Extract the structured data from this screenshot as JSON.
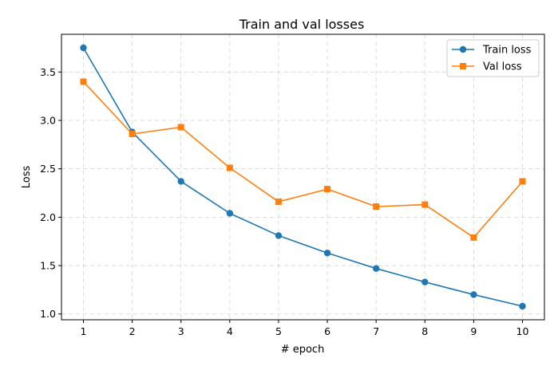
{
  "chart_data": {
    "type": "line",
    "title": "Train and val losses",
    "xlabel": "# epoch",
    "ylabel": "Loss",
    "x": [
      1,
      2,
      3,
      4,
      5,
      6,
      7,
      8,
      9,
      10
    ],
    "xlim": [
      0.55,
      10.45
    ],
    "ylim": [
      0.94,
      3.89
    ],
    "xticks": [
      1,
      2,
      3,
      4,
      5,
      6,
      7,
      8,
      9,
      10
    ],
    "yticks": [
      1.0,
      1.5,
      2.0,
      2.5,
      3.0,
      3.5
    ],
    "grid": true,
    "legend_position": "top-right",
    "series": [
      {
        "name": "Train loss",
        "color": "#1f77b4",
        "marker": "circle",
        "values": [
          3.75,
          2.88,
          2.37,
          2.04,
          1.81,
          1.63,
          1.47,
          1.33,
          1.2,
          1.08
        ]
      },
      {
        "name": "Val loss",
        "color": "#ff7f0e",
        "marker": "square",
        "values": [
          3.4,
          2.86,
          2.93,
          2.51,
          2.16,
          2.29,
          2.11,
          2.13,
          1.79,
          2.37
        ]
      }
    ]
  }
}
